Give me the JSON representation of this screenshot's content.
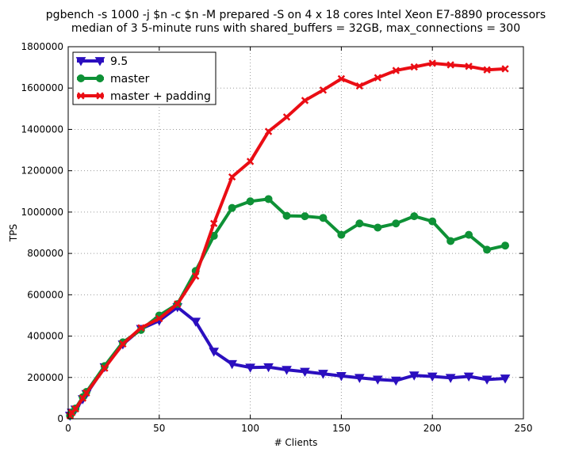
{
  "chart_data": {
    "type": "line",
    "title": "pgbench -s 1000 -j $n -c $n -M prepared -S on 4 x 18 cores Intel Xeon E7-8890 processors",
    "subtitle": "median of 3 5-minute runs with shared_buffers = 32GB, max_connections = 300",
    "xlabel": "# Clients",
    "ylabel": "TPS",
    "xlim": [
      0,
      250
    ],
    "ylim": [
      0,
      1800000
    ],
    "xticks": [
      "0",
      "50",
      "100",
      "150",
      "200",
      "250"
    ],
    "yticks": [
      "0",
      "200000",
      "400000",
      "600000",
      "800000",
      "1000000",
      "1200000",
      "1400000",
      "1600000",
      "1800000"
    ],
    "grid": true,
    "legend_position": "top-left",
    "x": [
      1,
      2,
      4,
      8,
      10,
      20,
      30,
      40,
      50,
      60,
      70,
      80,
      90,
      100,
      110,
      120,
      130,
      140,
      150,
      160,
      170,
      180,
      190,
      200,
      210,
      220,
      230,
      240
    ],
    "series": [
      {
        "name": "9.5",
        "color": "#2b0fbf",
        "marker": "triangle-down",
        "values": [
          15000,
          30000,
          45000,
          95000,
          120000,
          250000,
          360000,
          435000,
          475000,
          540000,
          470000,
          325000,
          265000,
          248000,
          250000,
          237000,
          228000,
          218000,
          207000,
          198000,
          190000,
          185000,
          210000,
          205000,
          198000,
          205000,
          190000,
          195000
        ]
      },
      {
        "name": "master",
        "color": "#0e9136",
        "marker": "circle",
        "values": [
          15000,
          30000,
          50000,
          105000,
          130000,
          255000,
          370000,
          430000,
          500000,
          555000,
          715000,
          885000,
          1020000,
          1052000,
          1063000,
          982000,
          980000,
          972000,
          890000,
          945000,
          925000,
          945000,
          980000,
          955000,
          860000,
          890000,
          818000,
          838000
        ]
      },
      {
        "name": "master + padding",
        "color": "#ea0d14",
        "marker": "x",
        "values": [
          15000,
          30000,
          48000,
          100000,
          125000,
          245000,
          362000,
          440000,
          485000,
          555000,
          690000,
          945000,
          1170000,
          1245000,
          1390000,
          1460000,
          1540000,
          1590000,
          1645000,
          1610000,
          1650000,
          1685000,
          1702000,
          1720000,
          1712000,
          1705000,
          1688000,
          1693000
        ]
      }
    ]
  }
}
